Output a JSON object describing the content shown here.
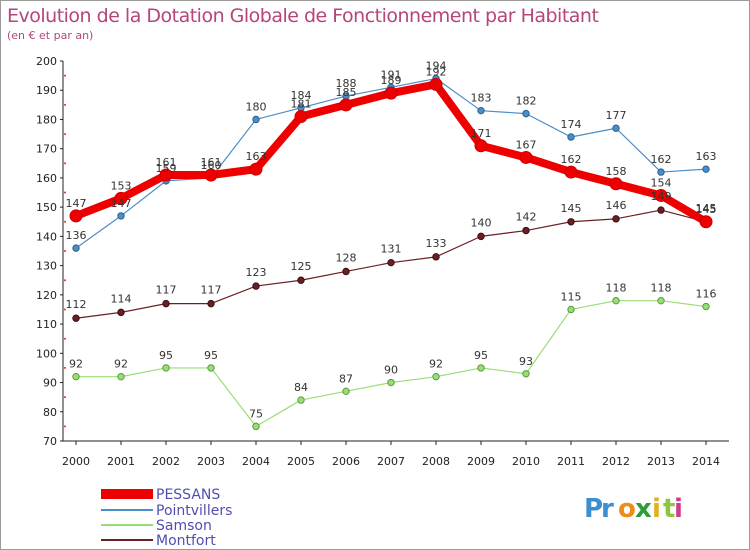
{
  "page": {
    "title": "Evolution de la Dotation Globale de Fonctionnement par Habitant",
    "subtitle": "(en € et par an)",
    "logo_text": "Proxiti"
  },
  "chart_data": {
    "type": "line",
    "title": "Evolution de la Dotation Globale de Fonctionnement par Habitant",
    "subtitle": "(en € et par an)",
    "xlabel": "",
    "ylabel": "",
    "x": [
      "2000",
      "2001",
      "2002",
      "2003",
      "2004",
      "2005",
      "2006",
      "2007",
      "2008",
      "2009",
      "2010",
      "2011",
      "2012",
      "2013",
      "2014"
    ],
    "y_ticks": [
      70,
      80,
      90,
      100,
      110,
      120,
      130,
      140,
      150,
      160,
      170,
      180,
      190,
      200
    ],
    "ylim": [
      70,
      200
    ],
    "grid": false,
    "legend_position": "bottom-left",
    "series": [
      {
        "name": "PESSANS",
        "color": "#ee0000",
        "values": [
          147,
          153,
          161,
          161,
          163,
          181,
          185,
          189,
          192,
          171,
          167,
          162,
          158,
          154,
          145
        ]
      },
      {
        "name": "Pointvillers",
        "color": "#4a8fc9",
        "values": [
          136,
          147,
          159,
          160,
          180,
          184,
          188,
          191,
          194,
          183,
          182,
          174,
          177,
          162,
          163
        ]
      },
      {
        "name": "Samson",
        "color": "#99dd77",
        "values": [
          92,
          92,
          95,
          95,
          75,
          84,
          87,
          90,
          92,
          95,
          93,
          115,
          118,
          118,
          116
        ]
      },
      {
        "name": "Montfort",
        "color": "#6b1f24",
        "values": [
          112,
          114,
          117,
          117,
          123,
          125,
          128,
          131,
          133,
          140,
          142,
          145,
          146,
          149,
          145
        ]
      }
    ],
    "data_labels": {
      "PESSANS": [
        "147",
        "153",
        "161",
        "161",
        "163",
        "181",
        "185",
        "189",
        "192",
        "171",
        "167",
        "162",
        "158",
        "154",
        "145"
      ],
      "Pointvillers": [
        "136",
        "147",
        "159",
        "160",
        "180",
        "184",
        "188",
        "191",
        "194",
        "183",
        "182",
        "174",
        "177",
        "162",
        "163"
      ],
      "Samson": [
        "92",
        "92",
        "95",
        "95",
        "75",
        "84",
        "87",
        "90",
        "92",
        "95",
        "93",
        "115",
        "118",
        "118",
        "116"
      ],
      "Montfort": [
        "112",
        "114",
        "117",
        "117",
        "123",
        "125",
        "128",
        "131",
        "133",
        "140",
        "142",
        "145",
        "146",
        "149",
        "145"
      ]
    }
  }
}
